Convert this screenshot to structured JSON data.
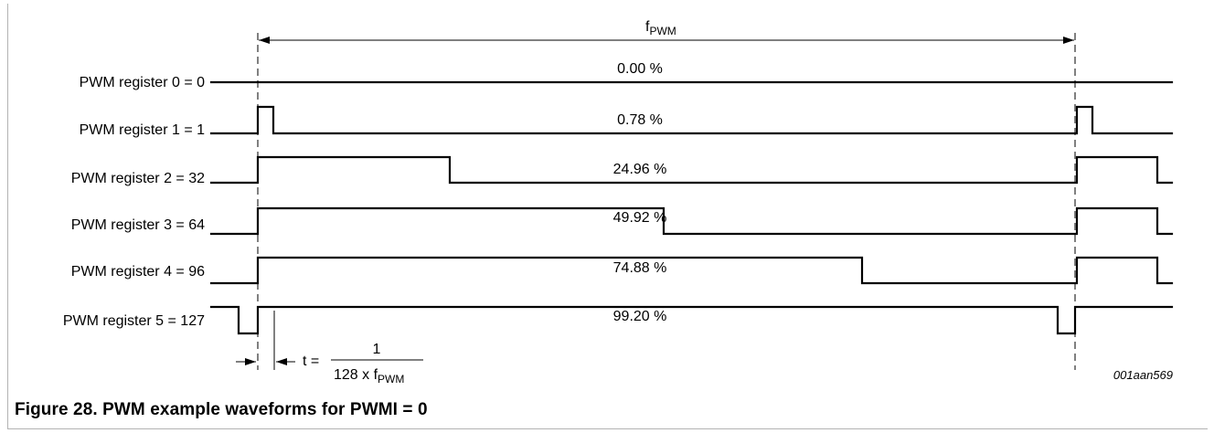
{
  "freq_label": {
    "main": "f",
    "sub": "PWM"
  },
  "signals": [
    {
      "label": "PWM register 0 = 0",
      "percent": "0.00 %"
    },
    {
      "label": "PWM register 1 = 1",
      "percent": "0.78 %"
    },
    {
      "label": "PWM register 2 = 32",
      "percent": "24.96 %"
    },
    {
      "label": "PWM register 3 = 64",
      "percent": "49.92 %"
    },
    {
      "label": "PWM register 4 = 96",
      "percent": "74.88 %"
    },
    {
      "label": "PWM register 5 = 127",
      "percent": "99.20 %"
    }
  ],
  "time_formula": {
    "prefix": "t =",
    "numerator": "1",
    "denominator_main": "128 x f",
    "denominator_sub": "PWM"
  },
  "figure_id": "001aan569",
  "caption": "Figure 28.  PWM example waveforms for PWMI = 0"
}
